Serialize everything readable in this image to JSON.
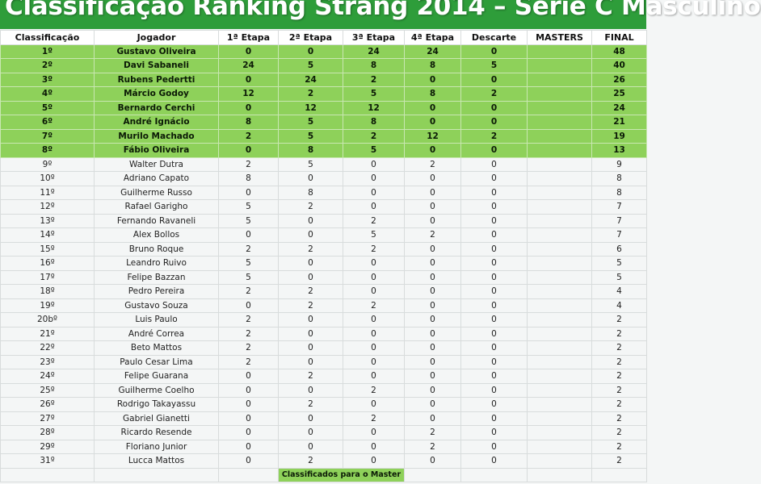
{
  "title": "Classificação Ranking Strang 2014 – Série C Masculino",
  "colors": {
    "title_bg": "#2e9d3a",
    "qualified_bg": "#8ed15a",
    "page_bg": "#f4f6f6"
  },
  "headers": [
    "Classificação",
    "Jogador",
    "1ª Etapa",
    "2ª Etapa",
    "3ª Etapa",
    "4ª Etapa",
    "Descarte",
    "MASTERS",
    "FINAL"
  ],
  "rows": [
    {
      "pos": "1º",
      "name": "Gustavo Oliveira",
      "e1": "0",
      "e2": "0",
      "e3": "24",
      "e4": "24",
      "desc": "0",
      "masters": "",
      "final": "48",
      "q": true
    },
    {
      "pos": "2º",
      "name": "Davi Sabaneli",
      "e1": "24",
      "e2": "5",
      "e3": "8",
      "e4": "8",
      "desc": "5",
      "masters": "",
      "final": "40",
      "q": true
    },
    {
      "pos": "3º",
      "name": "Rubens Pedertti",
      "e1": "0",
      "e2": "24",
      "e3": "2",
      "e4": "0",
      "desc": "0",
      "masters": "",
      "final": "26",
      "q": true
    },
    {
      "pos": "4º",
      "name": "Márcio Godoy",
      "e1": "12",
      "e2": "2",
      "e3": "5",
      "e4": "8",
      "desc": "2",
      "masters": "",
      "final": "25",
      "q": true
    },
    {
      "pos": "5º",
      "name": "Bernardo Cerchi",
      "e1": "0",
      "e2": "12",
      "e3": "12",
      "e4": "0",
      "desc": "0",
      "masters": "",
      "final": "24",
      "q": true
    },
    {
      "pos": "6º",
      "name": "André Ignácio",
      "e1": "8",
      "e2": "5",
      "e3": "8",
      "e4": "0",
      "desc": "0",
      "masters": "",
      "final": "21",
      "q": true
    },
    {
      "pos": "7º",
      "name": "Murilo Machado",
      "e1": "2",
      "e2": "5",
      "e3": "2",
      "e4": "12",
      "desc": "2",
      "masters": "",
      "final": "19",
      "q": true
    },
    {
      "pos": "8º",
      "name": "Fábio Oliveira",
      "e1": "0",
      "e2": "8",
      "e3": "5",
      "e4": "0",
      "desc": "0",
      "masters": "",
      "final": "13",
      "q": true
    },
    {
      "pos": "9º",
      "name": "Walter Dutra",
      "e1": "2",
      "e2": "5",
      "e3": "0",
      "e4": "2",
      "desc": "0",
      "masters": "",
      "final": "9",
      "q": false
    },
    {
      "pos": "10º",
      "name": "Adriano Capato",
      "e1": "8",
      "e2": "0",
      "e3": "0",
      "e4": "0",
      "desc": "0",
      "masters": "",
      "final": "8",
      "q": false
    },
    {
      "pos": "11º",
      "name": "Guilherme Russo",
      "e1": "0",
      "e2": "8",
      "e3": "0",
      "e4": "0",
      "desc": "0",
      "masters": "",
      "final": "8",
      "q": false
    },
    {
      "pos": "12º",
      "name": "Rafael Garigho",
      "e1": "5",
      "e2": "2",
      "e3": "0",
      "e4": "0",
      "desc": "0",
      "masters": "",
      "final": "7",
      "q": false
    },
    {
      "pos": "13º",
      "name": "Fernando Ravaneli",
      "e1": "5",
      "e2": "0",
      "e3": "2",
      "e4": "0",
      "desc": "0",
      "masters": "",
      "final": "7",
      "q": false
    },
    {
      "pos": "14º",
      "name": "Alex Bollos",
      "e1": "0",
      "e2": "0",
      "e3": "5",
      "e4": "2",
      "desc": "0",
      "masters": "",
      "final": "7",
      "q": false
    },
    {
      "pos": "15º",
      "name": "Bruno Roque",
      "e1": "2",
      "e2": "2",
      "e3": "2",
      "e4": "0",
      "desc": "0",
      "masters": "",
      "final": "6",
      "q": false
    },
    {
      "pos": "16º",
      "name": "Leandro Ruivo",
      "e1": "5",
      "e2": "0",
      "e3": "0",
      "e4": "0",
      "desc": "0",
      "masters": "",
      "final": "5",
      "q": false
    },
    {
      "pos": "17º",
      "name": "Felipe Bazzan",
      "e1": "5",
      "e2": "0",
      "e3": "0",
      "e4": "0",
      "desc": "0",
      "masters": "",
      "final": "5",
      "q": false
    },
    {
      "pos": "18º",
      "name": "Pedro Pereira",
      "e1": "2",
      "e2": "2",
      "e3": "0",
      "e4": "0",
      "desc": "0",
      "masters": "",
      "final": "4",
      "q": false
    },
    {
      "pos": "19º",
      "name": "Gustavo Souza",
      "e1": "0",
      "e2": "2",
      "e3": "2",
      "e4": "0",
      "desc": "0",
      "masters": "",
      "final": "4",
      "q": false
    },
    {
      "pos": "20bº",
      "name": "Luis Paulo",
      "e1": "2",
      "e2": "0",
      "e3": "0",
      "e4": "0",
      "desc": "0",
      "masters": "",
      "final": "2",
      "q": false
    },
    {
      "pos": "21º",
      "name": "André Correa",
      "e1": "2",
      "e2": "0",
      "e3": "0",
      "e4": "0",
      "desc": "0",
      "masters": "",
      "final": "2",
      "q": false
    },
    {
      "pos": "22º",
      "name": "Beto Mattos",
      "e1": "2",
      "e2": "0",
      "e3": "0",
      "e4": "0",
      "desc": "0",
      "masters": "",
      "final": "2",
      "q": false
    },
    {
      "pos": "23º",
      "name": "Paulo Cesar Lima",
      "e1": "2",
      "e2": "0",
      "e3": "0",
      "e4": "0",
      "desc": "0",
      "masters": "",
      "final": "2",
      "q": false
    },
    {
      "pos": "24º",
      "name": "Felipe Guarana",
      "e1": "0",
      "e2": "2",
      "e3": "0",
      "e4": "0",
      "desc": "0",
      "masters": "",
      "final": "2",
      "q": false
    },
    {
      "pos": "25º",
      "name": "Guilherme Coelho",
      "e1": "0",
      "e2": "0",
      "e3": "2",
      "e4": "0",
      "desc": "0",
      "masters": "",
      "final": "2",
      "q": false
    },
    {
      "pos": "26º",
      "name": "Rodrigo Takayassu",
      "e1": "0",
      "e2": "2",
      "e3": "0",
      "e4": "0",
      "desc": "0",
      "masters": "",
      "final": "2",
      "q": false
    },
    {
      "pos": "27º",
      "name": "Gabriel Gianetti",
      "e1": "0",
      "e2": "0",
      "e3": "2",
      "e4": "0",
      "desc": "0",
      "masters": "",
      "final": "2",
      "q": false
    },
    {
      "pos": "28º",
      "name": "Ricardo Resende",
      "e1": "0",
      "e2": "0",
      "e3": "0",
      "e4": "2",
      "desc": "0",
      "masters": "",
      "final": "2",
      "q": false
    },
    {
      "pos": "29º",
      "name": "Floriano Junior",
      "e1": "0",
      "e2": "0",
      "e3": "0",
      "e4": "2",
      "desc": "0",
      "masters": "",
      "final": "2",
      "q": false
    },
    {
      "pos": "31º",
      "name": "Lucca Mattos",
      "e1": "0",
      "e2": "2",
      "e3": "0",
      "e4": "0",
      "desc": "0",
      "masters": "",
      "final": "2",
      "q": false
    }
  ],
  "legend": "Classificados para o Master"
}
